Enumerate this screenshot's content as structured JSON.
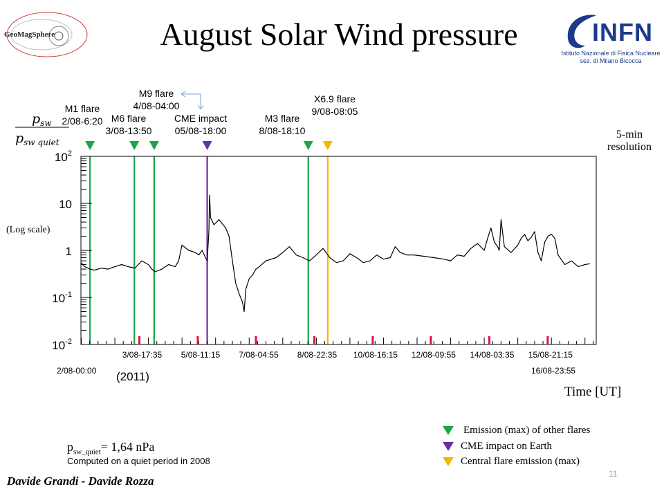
{
  "slide": {
    "title": "August Solar Wind pressure",
    "left_logo_text": "GeoMagSphere",
    "right_logo": {
      "name": "INFN",
      "line1": "Istituto Nazionale di Fisica Nucleare",
      "line2": "sez. di Milano Bicocca"
    },
    "resolution_note_line1": "5-min",
    "resolution_note_line2": "resolution",
    "log_scale_note": "(Log scale)",
    "year_note": "(2011)",
    "x_label": "Time [UT]",
    "quiet_label_main": "p",
    "quiet_label_sub": "sw_quiet",
    "quiet_label_value": "= 1,64 nPa",
    "quiet_note": "Computed on a quiet period in 2008",
    "legend": [
      {
        "label": "Emission (max) of other flares",
        "color": "#1aa64a"
      },
      {
        "label": "CME impact on Earth",
        "color": "#6a2fa0"
      },
      {
        "label": "Central flare emission (max)",
        "color": "#f5b800"
      }
    ],
    "authors": "Davide Grandi  -  Davide Rozza",
    "page_number": "11",
    "colors": {
      "flare": "#1aa64a",
      "cme": "#6a2fa0",
      "central": "#f5b800",
      "tick_red": "#e0143c",
      "arrow": "#7a9ed6"
    }
  },
  "chart_data": {
    "type": "line",
    "title": "",
    "ylabel_top": "p",
    "ylabel_top_sub": "sw",
    "ylabel_bottom": "p",
    "ylabel_bottom_sub": "sw quiet",
    "yscale": "log",
    "ylim": [
      0.01,
      100
    ],
    "y_ticks": [
      {
        "value": 100,
        "base": "10",
        "exp": "2"
      },
      {
        "value": 10,
        "base": "10",
        "exp": ""
      },
      {
        "value": 1,
        "base": "1",
        "exp": ""
      },
      {
        "value": 0.1,
        "base": "10",
        "exp": "-1"
      },
      {
        "value": 0.01,
        "base": "10",
        "exp": "-2"
      }
    ],
    "x_unit": "days since 2/08-00:00",
    "xlim": [
      -0.03,
      15.5
    ],
    "x_start_label": "2/08-00:00",
    "x_end_label": "16/08-23:55",
    "x_ticks": [
      {
        "x": 1.73,
        "label": "3/08-17:35"
      },
      {
        "x": 3.47,
        "label": "5/08-11:15"
      },
      {
        "x": 5.2,
        "label": "7/08-04:55"
      },
      {
        "x": 6.94,
        "label": "8/08-22:35"
      },
      {
        "x": 8.68,
        "label": "10/08-16:15"
      },
      {
        "x": 10.41,
        "label": "12/08-09:55"
      },
      {
        "x": 12.15,
        "label": "14/08-03:35"
      },
      {
        "x": 13.89,
        "label": "15/08-21:15"
      }
    ],
    "events": [
      {
        "x": 0.26,
        "type": "flare",
        "label1": "M1 flare",
        "label2": "2/08-6:20"
      },
      {
        "x": 1.58,
        "type": "flare",
        "label1": "M6 flare",
        "label2": "3/08-13:50"
      },
      {
        "x": 2.17,
        "type": "flare",
        "label1": "M9 flare",
        "label2": "4/08-04:00"
      },
      {
        "x": 3.75,
        "type": "cme",
        "label1": "CME impact",
        "label2": "05/08-18:00"
      },
      {
        "x": 6.76,
        "type": "flare",
        "label1": "M3 flare",
        "label2": "8/08-18:10"
      },
      {
        "x": 7.34,
        "type": "central",
        "label1": "X6.9 flare",
        "label2": "9/08-08:05"
      }
    ],
    "series": [
      {
        "name": "",
        "x": [
          0.0,
          0.1,
          0.2,
          0.26,
          0.4,
          0.6,
          0.8,
          1.0,
          1.2,
          1.4,
          1.6,
          1.8,
          2.0,
          2.1,
          2.2,
          2.4,
          2.6,
          2.8,
          2.9,
          3.0,
          3.2,
          3.4,
          3.5,
          3.6,
          3.7,
          3.75,
          3.8,
          3.82,
          3.85,
          3.95,
          4.1,
          4.3,
          4.4,
          4.5,
          4.6,
          4.7,
          4.8,
          4.85,
          4.9,
          5.0,
          5.1,
          5.2,
          5.3,
          5.5,
          5.8,
          6.0,
          6.2,
          6.4,
          6.6,
          6.8,
          7.0,
          7.2,
          7.4,
          7.6,
          7.8,
          8.0,
          8.2,
          8.4,
          8.6,
          8.8,
          9.0,
          9.2,
          9.35,
          9.5,
          9.7,
          9.9,
          10.2,
          10.5,
          10.8,
          11.0,
          11.2,
          11.4,
          11.6,
          11.8,
          12.0,
          12.1,
          12.2,
          12.3,
          12.4,
          12.45,
          12.5,
          12.6,
          12.8,
          13.0,
          13.1,
          13.2,
          13.3,
          13.4,
          13.5,
          13.6,
          13.7,
          13.8,
          13.9,
          14.0,
          14.1,
          14.2,
          14.4,
          14.6,
          14.8,
          15.0,
          15.15
        ],
        "y": [
          0.55,
          0.45,
          0.42,
          0.4,
          0.38,
          0.42,
          0.4,
          0.45,
          0.5,
          0.45,
          0.42,
          0.6,
          0.5,
          0.4,
          0.35,
          0.4,
          0.5,
          0.45,
          0.6,
          1.3,
          1.0,
          0.9,
          0.8,
          1.0,
          0.7,
          0.6,
          2.5,
          15.0,
          5.0,
          3.5,
          4.5,
          3.0,
          2.0,
          0.6,
          0.2,
          0.12,
          0.08,
          0.05,
          0.15,
          0.25,
          0.3,
          0.4,
          0.45,
          0.6,
          0.7,
          0.9,
          1.2,
          0.8,
          0.7,
          0.6,
          0.8,
          1.1,
          0.7,
          0.55,
          0.6,
          0.85,
          0.7,
          0.55,
          0.6,
          0.8,
          0.65,
          0.7,
          1.2,
          0.9,
          0.8,
          0.8,
          0.75,
          0.7,
          0.65,
          0.6,
          0.8,
          0.75,
          1.1,
          1.4,
          1.0,
          1.8,
          3.0,
          1.5,
          1.2,
          1.0,
          4.5,
          1.2,
          0.9,
          1.3,
          1.8,
          2.2,
          1.6,
          1.9,
          2.5,
          0.9,
          0.6,
          1.5,
          2.0,
          2.2,
          1.8,
          0.8,
          0.5,
          0.6,
          0.45,
          0.5,
          0.52
        ]
      }
    ],
    "legend": "bottom-right",
    "grid": false
  }
}
